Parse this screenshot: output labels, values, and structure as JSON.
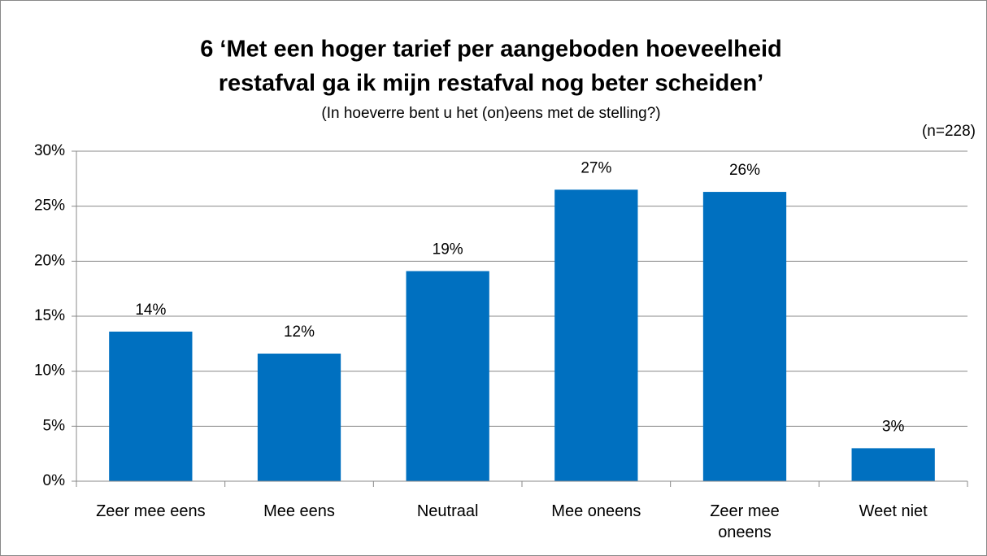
{
  "chart_data": {
    "type": "bar",
    "title": [
      "6 ‘Met een hoger tarief per aangeboden hoeveelheid",
      "restafval ga ik mijn restafval nog beter scheiden’"
    ],
    "subtitle": "(In hoeverre bent u het (on)eens met de stelling?)",
    "annotation": "(n=228)",
    "categories": [
      "Zeer mee eens",
      "Mee eens",
      "Neutraal",
      "Mee oneens",
      "Zeer mee oneens",
      "Weet niet"
    ],
    "values": [
      13.6,
      11.6,
      19.1,
      26.5,
      26.3,
      3.0
    ],
    "value_labels": [
      "14%",
      "12%",
      "19%",
      "27%",
      "26%",
      "3%"
    ],
    "color": "#0070c0",
    "ylim": [
      0,
      30
    ],
    "yticks": [
      {
        "value": 0,
        "label": "0%"
      },
      {
        "value": 5,
        "label": "5%"
      },
      {
        "value": 10,
        "label": "10%"
      },
      {
        "value": 15,
        "label": "15%"
      },
      {
        "value": 20,
        "label": "20%"
      },
      {
        "value": 25,
        "label": "25%"
      },
      {
        "value": 30,
        "label": "30%"
      }
    ],
    "grid": true
  }
}
